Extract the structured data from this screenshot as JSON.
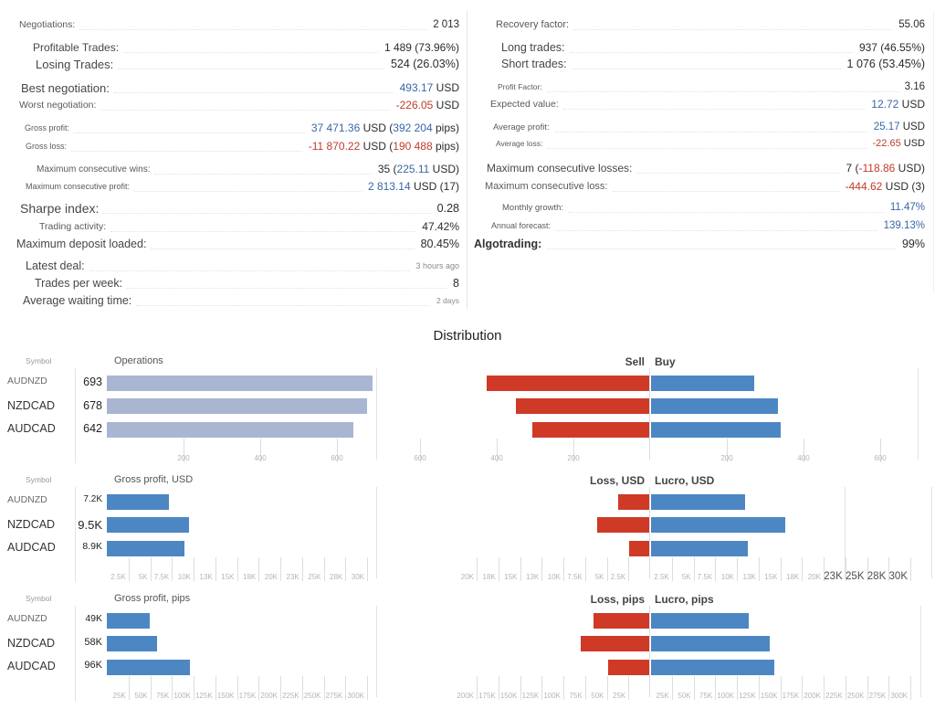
{
  "colors": {
    "value_blue": "#3b66a8",
    "value_red": "#c23a2b",
    "bar_blue": "#4d87c3",
    "bar_red": "#cf3a27",
    "bar_slate": "#a9b6d2",
    "center_line": "#dddddd"
  },
  "stats": {
    "left": [
      {
        "label": "Negotiations:",
        "y": 27,
        "ind": 21,
        "lfs": 10.5,
        "vfs": 11.5,
        "parts": [
          {
            "t": "2 013",
            "c": "d"
          }
        ]
      },
      {
        "label": "Profitable Trades:",
        "y": 52,
        "ind": 36,
        "lfs": 12,
        "vfs": 12,
        "parts": [
          {
            "t": "1 489 (73.96%)",
            "c": "d"
          }
        ]
      },
      {
        "label": "Losing Trades:",
        "y": 70,
        "ind": 39,
        "lfs": 13,
        "vfs": 12.5,
        "parts": [
          {
            "t": "524 (26.03%)",
            "c": "d"
          }
        ]
      },
      {
        "label": "Best negotiation:",
        "y": 96,
        "ind": 23,
        "lfs": 13,
        "vfs": 12,
        "parts": [
          {
            "t": "493.17",
            "c": "b"
          },
          {
            "t": " USD",
            "c": "d"
          }
        ]
      },
      {
        "label": "Worst negotiation:",
        "y": 115,
        "ind": 21,
        "lfs": 10.5,
        "vfs": 12,
        "parts": [
          {
            "t": "-226.05",
            "c": "r"
          },
          {
            "t": " USD",
            "c": "d"
          }
        ]
      },
      {
        "label": "Gross profit:",
        "y": 140,
        "ind": 27,
        "lfs": 9,
        "vfs": 12,
        "parts": [
          {
            "t": "37 471.36",
            "c": "b"
          },
          {
            "t": " USD (",
            "c": "d"
          },
          {
            "t": "392 204",
            "c": "b"
          },
          {
            "t": " pips)",
            "c": "d"
          }
        ]
      },
      {
        "label": "Gross loss:",
        "y": 160,
        "ind": 28,
        "lfs": 9,
        "vfs": 12,
        "parts": [
          {
            "t": "-11 870.22",
            "c": "r"
          },
          {
            "t": " USD (",
            "c": "d"
          },
          {
            "t": "190 488",
            "c": "r"
          },
          {
            "t": " pips)",
            "c": "d"
          }
        ]
      },
      {
        "label": "Maximum consecutive wins:",
        "y": 185,
        "ind": 40,
        "lfs": 10,
        "vfs": 12,
        "parts": [
          {
            "t": "35 (",
            "c": "d"
          },
          {
            "t": "225.11",
            "c": "b"
          },
          {
            "t": " USD)",
            "c": "d"
          }
        ]
      },
      {
        "label": "Maximum consecutive profit:",
        "y": 204,
        "ind": 28,
        "lfs": 9,
        "vfs": 12,
        "parts": [
          {
            "t": "2 813.14",
            "c": "b"
          },
          {
            "t": " USD (17)",
            "c": "d"
          }
        ]
      },
      {
        "label": "Sharpe index:",
        "y": 228,
        "ind": 22,
        "lfs": 14,
        "vfs": 12.5,
        "parts": [
          {
            "t": "0.28",
            "c": "d"
          }
        ]
      },
      {
        "label": "Trading activity:",
        "y": 248,
        "ind": 43,
        "lfs": 10.5,
        "vfs": 12,
        "parts": [
          {
            "t": "47.42%",
            "c": "d"
          }
        ]
      },
      {
        "label": "Maximum deposit loaded:",
        "y": 267,
        "ind": 18,
        "lfs": 12.5,
        "vfs": 12.5,
        "parts": [
          {
            "t": "80.45%",
            "c": "d"
          }
        ]
      },
      {
        "label": "Latest deal:",
        "y": 291,
        "ind": 28,
        "lfs": 12.5,
        "vfs": 9,
        "parts": [
          {
            "t": "3 hours ago",
            "c": "g"
          }
        ]
      },
      {
        "label": "Trades per week:",
        "y": 310,
        "ind": 38,
        "lfs": 12.5,
        "vfs": 12.5,
        "parts": [
          {
            "t": "8",
            "c": "d"
          }
        ]
      },
      {
        "label": "Average waiting time:",
        "y": 329,
        "ind": 25,
        "lfs": 12.5,
        "vfs": 8.5,
        "parts": [
          {
            "t": "2 days",
            "c": "g"
          }
        ]
      }
    ],
    "right": [
      {
        "label": "Recovery factor:",
        "y": 27,
        "ind": 31,
        "lfs": 11,
        "vfs": 11.5,
        "parts": [
          {
            "t": "55.06",
            "c": "d"
          }
        ]
      },
      {
        "label": "Long trades:",
        "y": 52,
        "ind": 37,
        "lfs": 12.5,
        "vfs": 12,
        "parts": [
          {
            "t": "937 (46.55%)",
            "c": "d"
          }
        ]
      },
      {
        "label": "Short trades:",
        "y": 70,
        "ind": 37,
        "lfs": 12.5,
        "vfs": 12.5,
        "parts": [
          {
            "t": "1 076 (53.45%)",
            "c": "d"
          }
        ]
      },
      {
        "label": "Profit Factor:",
        "y": 95,
        "ind": 33,
        "lfs": 8.5,
        "vfs": 11.5,
        "parts": [
          {
            "t": "3.16",
            "c": "d"
          }
        ]
      },
      {
        "label": "Expected value:",
        "y": 114,
        "ind": 25,
        "lfs": 10.5,
        "vfs": 12,
        "parts": [
          {
            "t": "12.72",
            "c": "b"
          },
          {
            "t": " USD",
            "c": "d"
          }
        ]
      },
      {
        "label": "Average profit:",
        "y": 139,
        "ind": 28,
        "lfs": 9.5,
        "vfs": 11.5,
        "parts": [
          {
            "t": "25.17",
            "c": "b"
          },
          {
            "t": " USD",
            "c": "d"
          }
        ]
      },
      {
        "label": "Average loss:",
        "y": 157,
        "ind": 31,
        "lfs": 8.5,
        "vfs": 11,
        "parts": [
          {
            "t": "-22.65",
            "c": "r"
          },
          {
            "t": " USD",
            "c": "d"
          }
        ]
      },
      {
        "label": "Maximum consecutive losses:",
        "y": 184,
        "ind": 21,
        "lfs": 12,
        "vfs": 12,
        "parts": [
          {
            "t": "7 (",
            "c": "d"
          },
          {
            "t": "-118.86",
            "c": "r"
          },
          {
            "t": " USD)",
            "c": "d"
          }
        ]
      },
      {
        "label": "Maximum consecutive loss:",
        "y": 204,
        "ind": 19,
        "lfs": 11,
        "vfs": 12,
        "parts": [
          {
            "t": "-444.62",
            "c": "r"
          },
          {
            "t": " USD (3)",
            "c": "d"
          }
        ]
      },
      {
        "label": "Monthly growth:",
        "y": 227,
        "ind": 38,
        "lfs": 9.5,
        "vfs": 11.5,
        "parts": [
          {
            "t": "11.47%",
            "c": "b"
          }
        ]
      },
      {
        "label": "Annual forecast:",
        "y": 247,
        "ind": 26,
        "lfs": 9,
        "vfs": 11.5,
        "parts": [
          {
            "t": "139.13%",
            "c": "b"
          }
        ]
      },
      {
        "label": "Algotrading:",
        "y": 267,
        "ind": 7,
        "lfs": 12.5,
        "bold": true,
        "vfs": 12.5,
        "parts": [
          {
            "t": "99%",
            "c": "d"
          }
        ]
      }
    ]
  },
  "distribution": {
    "title": "Distribution"
  },
  "chart_data": [
    {
      "type": "bar",
      "symbol_header": "Symbol",
      "categories": [
        "AUDNZD",
        "NZDCAD",
        "AUDCAD"
      ],
      "cat_sizes": [
        10.5,
        12.5,
        12.5
      ],
      "left": {
        "title": "Operations",
        "values": [
          693,
          678,
          642
        ],
        "value_labels": [
          "693",
          "678",
          "642"
        ],
        "label_sizes": [
          12.5,
          12.5,
          12.5
        ],
        "bar_color": "slate",
        "scale": 0.42,
        "xlim": [
          0,
          700
        ],
        "tick_mode": "center",
        "ticks": [
          [
            200,
            "200"
          ],
          [
            400,
            "400"
          ],
          [
            600,
            "600"
          ]
        ]
      },
      "right": {
        "header_left": "Sell",
        "header_right": "Buy",
        "neg_values": [
          423,
          348,
          305
        ],
        "pos_values": [
          270,
          330,
          337
        ],
        "scale": 0.42,
        "xlim": [
          -700,
          700
        ],
        "tick_mode": "center",
        "ticks_neg": [
          [
            600,
            "600"
          ],
          [
            400,
            "400"
          ],
          [
            200,
            "200"
          ]
        ],
        "ticks_pos": [
          [
            200,
            "200"
          ],
          [
            400,
            "400"
          ],
          [
            600,
            "600"
          ]
        ],
        "edges": [
          1005
        ]
      }
    },
    {
      "type": "bar",
      "symbol_header": "Symbol",
      "categories": [
        "AUDNZD",
        "NZDCAD",
        "AUDCAD"
      ],
      "cat_sizes": [
        10.5,
        12.5,
        12.5
      ],
      "left": {
        "title": "Gross profit, USD",
        "values": [
          7.2,
          9.5,
          8.9
        ],
        "value_labels": [
          "7.2K",
          "9.5K",
          "8.9K"
        ],
        "label_sizes": [
          10,
          13,
          10.5
        ],
        "bar_color": "blue",
        "scale": 9.5,
        "xlim": [
          0,
          30
        ],
        "tick_mode": "before",
        "ticks": [
          [
            2.5,
            "2.5K"
          ],
          [
            5,
            "5K"
          ],
          [
            7.5,
            "7.5K"
          ],
          [
            10,
            "10K"
          ],
          [
            12.5,
            "13K"
          ],
          [
            15,
            "15K"
          ],
          [
            17.5,
            "18K"
          ],
          [
            20,
            "20K"
          ],
          [
            22.5,
            "23K"
          ],
          [
            25,
            "25K"
          ],
          [
            27.5,
            "28K"
          ],
          [
            30,
            "30K"
          ]
        ]
      },
      "right": {
        "header_left": "Loss, USD",
        "header_right": "Lucro, USD",
        "neg_values": [
          3.6,
          6.0,
          2.3
        ],
        "pos_values": [
          10.8,
          15.5,
          11.2
        ],
        "scale": 9.5,
        "xlim": [
          -30,
          30
        ],
        "tick_mode": "before",
        "ticks_neg": [
          [
            20,
            "20K"
          ],
          [
            17.5,
            "18K"
          ],
          [
            15,
            "15K"
          ],
          [
            12.5,
            "13K"
          ],
          [
            10,
            "10K"
          ],
          [
            7.5,
            "7.5K"
          ],
          [
            5,
            "5K"
          ],
          [
            2.5,
            "2.5K"
          ]
        ],
        "ticks_pos": [
          [
            2.5,
            "2.5K"
          ],
          [
            5,
            "5K"
          ],
          [
            7.5,
            "7.5K"
          ],
          [
            10,
            "10K"
          ],
          [
            12.5,
            "13K"
          ],
          [
            15,
            "15K"
          ],
          [
            17.5,
            "18K"
          ],
          [
            20,
            "20K"
          ],
          [
            22.5,
            "23K",
            "big"
          ],
          [
            25,
            "25K",
            "big"
          ],
          [
            27.5,
            "28K",
            "big"
          ],
          [
            30,
            "30K",
            "big"
          ]
        ],
        "edges": [
          925,
          1020
        ]
      }
    },
    {
      "type": "bar",
      "symbol_header": "Symbol",
      "categories": [
        "AUDNZD",
        "NZDCAD",
        "AUDCAD"
      ],
      "cat_sizes": [
        10.5,
        12.5,
        12.5
      ],
      "left": {
        "title": "Gross profit, pips",
        "values": [
          49,
          58,
          96
        ],
        "value_labels": [
          "49K",
          "58K",
          "96K"
        ],
        "label_sizes": [
          10.5,
          11,
          11
        ],
        "bar_color": "blue",
        "scale": 0.95,
        "xlim": [
          0,
          300
        ],
        "tick_mode": "before",
        "ticks": [
          [
            25,
            "25K"
          ],
          [
            50,
            "50K"
          ],
          [
            75,
            "75K"
          ],
          [
            100,
            "100K"
          ],
          [
            125,
            "125K"
          ],
          [
            150,
            "150K"
          ],
          [
            175,
            "175K"
          ],
          [
            200,
            "200K"
          ],
          [
            225,
            "225K"
          ],
          [
            250,
            "250K"
          ],
          [
            275,
            "275K"
          ],
          [
            300,
            "300K"
          ]
        ]
      },
      "right": {
        "header_left": "Loss, pips",
        "header_right": "Lucro, pips",
        "neg_values": [
          64,
          79,
          47
        ],
        "pos_values": [
          113,
          137,
          142
        ],
        "scale": 0.95,
        "xlim": [
          -300,
          300
        ],
        "tick_mode": "before",
        "ticks_neg": [
          [
            200,
            "200K"
          ],
          [
            175,
            "175K"
          ],
          [
            150,
            "150K"
          ],
          [
            125,
            "125K"
          ],
          [
            100,
            "100K"
          ],
          [
            75,
            "75K"
          ],
          [
            50,
            "50K"
          ],
          [
            25,
            "25K"
          ]
        ],
        "ticks_pos": [
          [
            25,
            "25K"
          ],
          [
            50,
            "50K"
          ],
          [
            75,
            "75K"
          ],
          [
            100,
            "100K"
          ],
          [
            125,
            "125K"
          ],
          [
            150,
            "150K"
          ],
          [
            175,
            "175K"
          ],
          [
            200,
            "200K"
          ],
          [
            225,
            "225K"
          ],
          [
            250,
            "250K"
          ],
          [
            275,
            "275K"
          ],
          [
            300,
            "300K"
          ]
        ],
        "edges": [
          1008
        ]
      }
    }
  ]
}
